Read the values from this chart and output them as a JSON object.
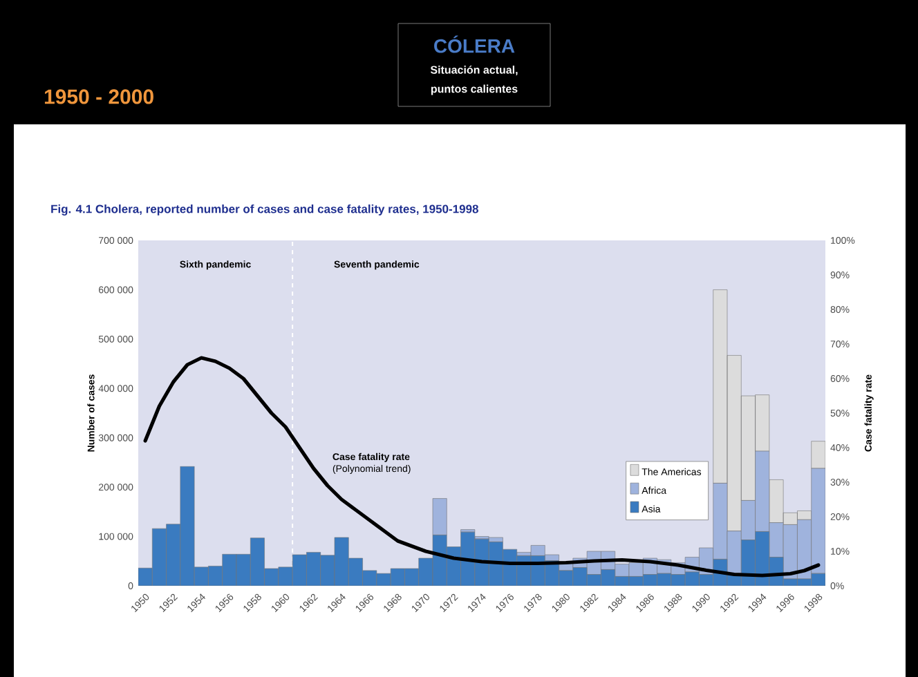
{
  "chart_data": {
    "type": "bar",
    "stacked": true,
    "title": "Fig. 4.1  Cholera, reported number of  cases and case fatality rates, 1950-1998",
    "ylabel": "Number of cases",
    "y2label": "Case fatality rate",
    "annotations": [
      "CÓLERA",
      "Situación actual,",
      "puntos calientes",
      "1950 - 2000",
      "Sixth pandemic",
      "Seventh pandemic",
      "(Polynomial trend)"
    ],
    "x": [
      1950,
      1951,
      1952,
      1953,
      1954,
      1955,
      1956,
      1957,
      1958,
      1959,
      1960,
      1961,
      1962,
      1963,
      1964,
      1965,
      1966,
      1967,
      1968,
      1969,
      1970,
      1971,
      1972,
      1973,
      1974,
      1975,
      1976,
      1977,
      1978,
      1979,
      1980,
      1981,
      1982,
      1983,
      1984,
      1985,
      1986,
      1987,
      1988,
      1989,
      1990,
      1991,
      1992,
      1993,
      1994,
      1995,
      1996,
      1997,
      1998
    ],
    "xlim": [
      1949.5,
      1998.5
    ],
    "xticks": [
      1950,
      1952,
      1954,
      1956,
      1958,
      1960,
      1962,
      1964,
      1966,
      1968,
      1970,
      1972,
      1974,
      1976,
      1978,
      1980,
      1982,
      1984,
      1986,
      1988,
      1990,
      1992,
      1994,
      1996,
      1998
    ],
    "ylim": [
      0,
      700000
    ],
    "yticks": [
      {
        "value": 0,
        "label": "0"
      },
      {
        "value": 100000,
        "label": "100 000"
      },
      {
        "value": 200000,
        "label": "200 000"
      },
      {
        "value": 300000,
        "label": "300 000"
      },
      {
        "value": 400000,
        "label": "400 000"
      },
      {
        "value": 500000,
        "label": "500 000"
      },
      {
        "value": 600000,
        "label": "600 000"
      },
      {
        "value": 700000,
        "label": "700 000"
      }
    ],
    "y2lim": [
      0,
      100
    ],
    "y2ticks": [
      {
        "value": 0,
        "label": "0%"
      },
      {
        "value": 10,
        "label": "10%"
      },
      {
        "value": 20,
        "label": "20%"
      },
      {
        "value": 30,
        "label": "30%"
      },
      {
        "value": 40,
        "label": "40%"
      },
      {
        "value": 50,
        "label": "50%"
      },
      {
        "value": 60,
        "label": "60%"
      },
      {
        "value": 70,
        "label": "70%"
      },
      {
        "value": 80,
        "label": "80%"
      },
      {
        "value": 90,
        "label": "90%"
      },
      {
        "value": 100,
        "label": "100%"
      }
    ],
    "legend": "bottom right",
    "ref_lines": [
      {
        "axis": "x",
        "value": 1960.5,
        "color": "#ffffff",
        "line_style": "dashed"
      }
    ],
    "series": [
      {
        "name": "Asia",
        "color": "#3a7bc0",
        "values": [
          36000,
          116000,
          125000,
          242000,
          38000,
          40000,
          64000,
          64000,
          97000,
          35000,
          38000,
          63000,
          68000,
          62000,
          98000,
          56000,
          31000,
          25000,
          35000,
          35000,
          56000,
          103000,
          79000,
          109000,
          95000,
          89000,
          74000,
          61000,
          61000,
          51000,
          31000,
          37000,
          23000,
          33000,
          19000,
          19000,
          23000,
          25000,
          23000,
          28000,
          23000,
          54000,
          25000,
          93000,
          110000,
          58000,
          14000,
          14000,
          25000
        ]
      },
      {
        "name": "Africa",
        "color": "#9fb3dd",
        "values": [
          0,
          0,
          0,
          0,
          0,
          0,
          0,
          0,
          0,
          0,
          0,
          0,
          0,
          0,
          0,
          0,
          0,
          0,
          0,
          0,
          0,
          74000,
          0,
          5000,
          5000,
          9000,
          0,
          7000,
          21000,
          12000,
          18000,
          19000,
          47000,
          37000,
          25000,
          28000,
          33000,
          28000,
          24000,
          30000,
          54000,
          154000,
          86000,
          80000,
          163000,
          70000,
          110000,
          120000,
          213000
        ]
      },
      {
        "name": "The Americas",
        "color": "#dcdcdc",
        "values": [
          0,
          0,
          0,
          0,
          0,
          0,
          0,
          0,
          0,
          0,
          0,
          0,
          0,
          0,
          0,
          0,
          0,
          0,
          0,
          0,
          0,
          0,
          0,
          0,
          0,
          0,
          0,
          0,
          0,
          0,
          0,
          0,
          0,
          0,
          0,
          0,
          0,
          0,
          0,
          0,
          0,
          392000,
          356000,
          212000,
          114000,
          87000,
          24000,
          18000,
          55000
        ]
      },
      {
        "name": "Case fatality rate",
        "type": "line",
        "axis": "y2",
        "color": "#000000",
        "x": [
          1950,
          1951,
          1952,
          1953,
          1954,
          1955,
          1956,
          1957,
          1958,
          1959,
          1960,
          1961,
          1962,
          1963,
          1964,
          1965,
          1966,
          1967,
          1968,
          1969,
          1970,
          1971,
          1972,
          1974,
          1976,
          1978,
          1980,
          1982,
          1984,
          1986,
          1988,
          1990,
          1992,
          1994,
          1996,
          1997,
          1998
        ],
        "values": [
          42,
          52,
          59,
          64,
          66,
          65,
          63,
          60,
          55,
          50,
          46,
          40,
          34,
          29,
          25,
          22,
          19,
          16,
          13,
          11.5,
          10,
          9,
          8,
          7,
          6.5,
          6.5,
          6.7,
          7.2,
          7.5,
          7,
          6,
          4.5,
          3.3,
          3,
          3.5,
          4.4,
          6
        ]
      }
    ]
  }
}
